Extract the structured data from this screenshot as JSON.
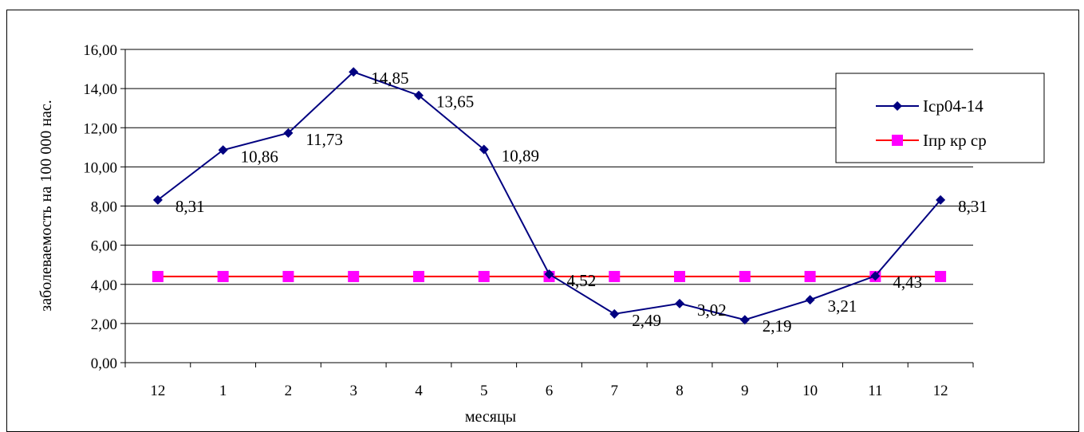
{
  "chart_data": {
    "type": "line",
    "categories": [
      "12",
      "1",
      "2",
      "3",
      "4",
      "5",
      "6",
      "7",
      "8",
      "9",
      "10",
      "11",
      "12"
    ],
    "series": [
      {
        "name": "Iср04-14",
        "values": [
          8.31,
          10.86,
          11.73,
          14.85,
          13.65,
          10.89,
          4.52,
          2.49,
          3.02,
          2.19,
          3.21,
          4.43,
          8.31
        ],
        "data_labels": [
          "8,31",
          "10,86",
          "11,73",
          "14,85",
          "13,65",
          "10,89",
          "4,52",
          "2,49",
          "3,02",
          "2,19",
          "3,21",
          "4,43",
          "8,31"
        ],
        "color": "#000080",
        "marker": "diamond"
      },
      {
        "name": "Iпр кр ср",
        "values": [
          4.4,
          4.4,
          4.4,
          4.4,
          4.4,
          4.4,
          4.4,
          4.4,
          4.4,
          4.4,
          4.4,
          4.4,
          4.4
        ],
        "color": "#ff0000",
        "marker_color": "#ff00ff",
        "marker": "square"
      }
    ],
    "xlabel": "месяцы",
    "ylabel": "заболеваемость на 100 000 нас.",
    "ylim": [
      0,
      16
    ],
    "yticks": [
      "0,00",
      "2,00",
      "4,00",
      "6,00",
      "8,00",
      "10,00",
      "12,00",
      "14,00",
      "16,00"
    ],
    "grid": true,
    "legend_position": "right"
  }
}
